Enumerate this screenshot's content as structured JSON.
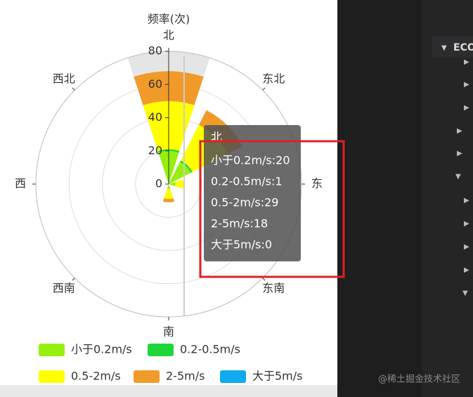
{
  "chart_data": {
    "type": "polar-bar",
    "radius_axis_name": "频率(次)",
    "categories": [
      "北",
      "东北",
      "东",
      "东南",
      "南",
      "西南",
      "西",
      "西北"
    ],
    "series": [
      {
        "name": "小于0.2m/s",
        "color": "#96f00f",
        "values": [
          20,
          15,
          4,
          0,
          3,
          0,
          0,
          0
        ]
      },
      {
        "name": "0.2-0.5m/s",
        "color": "#1fd63a",
        "values": [
          1,
          1,
          0,
          0,
          0,
          0,
          0,
          0
        ]
      },
      {
        "name": "0.5-2m/s",
        "color": "#ffff00",
        "values": [
          29,
          24,
          5,
          0,
          6,
          0,
          0,
          0
        ]
      },
      {
        "name": "2-5m/s",
        "color": "#f09a2a",
        "values": [
          18,
          10,
          0,
          0,
          2,
          0,
          0,
          0
        ]
      },
      {
        "name": "大于5m/s",
        "color": "#10aaee",
        "values": [
          0,
          0,
          0,
          0,
          0,
          0,
          0,
          0
        ]
      }
    ],
    "ylim": [
      0,
      80
    ],
    "yticks": [
      0,
      20,
      40,
      60,
      80
    ],
    "grid": true,
    "legend": "bottom"
  },
  "tooltip": {
    "title": "北",
    "lines": [
      "小于0.2m/s:20",
      "0.2-0.5m/s:1",
      "0.5-2m/s:29",
      "2-5m/s:18",
      "大于5m/s:0"
    ]
  },
  "editor": {
    "section": "ECO"
  },
  "watermark": "@稀土掘金技术社区"
}
